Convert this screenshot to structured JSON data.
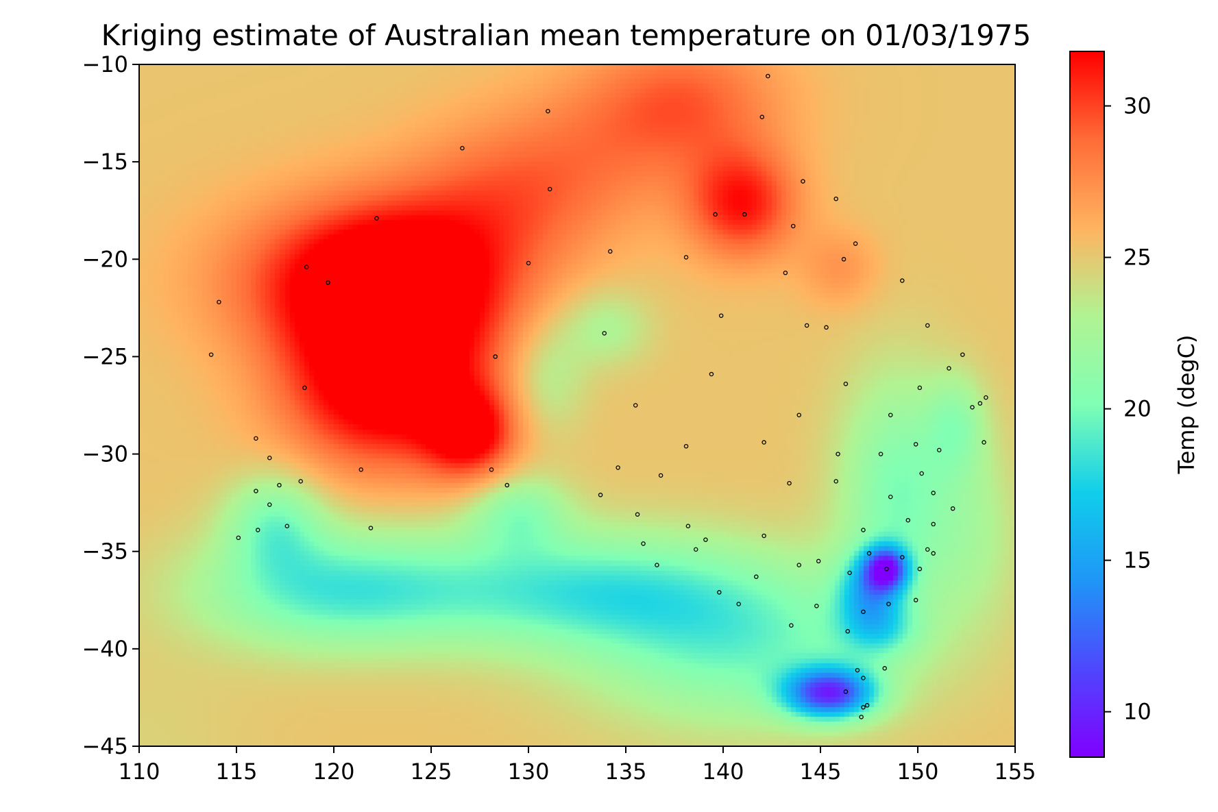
{
  "chart_data": {
    "type": "heatmap",
    "title": "Kriging estimate of Australian mean temperature on 01/03/1975",
    "xlabel": "",
    "ylabel": "",
    "xlim": [
      110,
      155
    ],
    "ylim": [
      -45,
      -10
    ],
    "xticks": [
      "110",
      "115",
      "120",
      "125",
      "130",
      "135",
      "140",
      "145",
      "150",
      "155"
    ],
    "yticks": [
      "−10",
      "−15",
      "−20",
      "−25",
      "−30",
      "−35",
      "−40",
      "−45"
    ],
    "colorbar": {
      "label": "Temp (degC)",
      "range": [
        8.5,
        31.8
      ],
      "ticks": [
        "10",
        "15",
        "20",
        "25",
        "30"
      ],
      "colormap": "rainbow"
    },
    "grid": false,
    "stations": [
      [
        142.3,
        -10.6
      ],
      [
        131.0,
        -12.4
      ],
      [
        142.0,
        -12.7
      ],
      [
        126.6,
        -14.3
      ],
      [
        144.1,
        -16.0
      ],
      [
        131.1,
        -16.4
      ],
      [
        145.8,
        -16.9
      ],
      [
        139.6,
        -17.7
      ],
      [
        141.1,
        -17.7
      ],
      [
        122.2,
        -17.9
      ],
      [
        143.6,
        -18.3
      ],
      [
        146.8,
        -19.2
      ],
      [
        134.2,
        -19.6
      ],
      [
        138.1,
        -19.9
      ],
      [
        146.2,
        -20.0
      ],
      [
        130.0,
        -20.2
      ],
      [
        118.6,
        -20.4
      ],
      [
        143.2,
        -20.7
      ],
      [
        149.2,
        -21.1
      ],
      [
        119.7,
        -21.2
      ],
      [
        114.1,
        -22.2
      ],
      [
        139.9,
        -22.9
      ],
      [
        144.3,
        -23.4
      ],
      [
        150.5,
        -23.4
      ],
      [
        145.3,
        -23.5
      ],
      [
        133.9,
        -23.8
      ],
      [
        113.7,
        -24.9
      ],
      [
        152.3,
        -24.9
      ],
      [
        128.3,
        -25.0
      ],
      [
        151.6,
        -25.6
      ],
      [
        139.4,
        -25.9
      ],
      [
        146.3,
        -26.4
      ],
      [
        118.5,
        -26.6
      ],
      [
        150.1,
        -26.6
      ],
      [
        153.5,
        -27.1
      ],
      [
        153.2,
        -27.4
      ],
      [
        152.8,
        -27.6
      ],
      [
        135.5,
        -27.5
      ],
      [
        143.9,
        -28.0
      ],
      [
        148.6,
        -28.0
      ],
      [
        116.0,
        -29.2
      ],
      [
        142.1,
        -29.4
      ],
      [
        149.9,
        -29.5
      ],
      [
        153.4,
        -29.4
      ],
      [
        138.1,
        -29.6
      ],
      [
        151.1,
        -29.8
      ],
      [
        145.9,
        -30.0
      ],
      [
        148.1,
        -30.0
      ],
      [
        116.7,
        -30.2
      ],
      [
        134.6,
        -30.7
      ],
      [
        121.4,
        -30.8
      ],
      [
        128.1,
        -30.8
      ],
      [
        150.2,
        -31.0
      ],
      [
        136.8,
        -31.1
      ],
      [
        117.2,
        -31.6
      ],
      [
        118.3,
        -31.4
      ],
      [
        143.4,
        -31.5
      ],
      [
        145.8,
        -31.4
      ],
      [
        128.9,
        -31.6
      ],
      [
        116.0,
        -31.9
      ],
      [
        150.8,
        -32.0
      ],
      [
        133.7,
        -32.1
      ],
      [
        148.6,
        -32.2
      ],
      [
        116.7,
        -32.6
      ],
      [
        151.8,
        -32.8
      ],
      [
        135.6,
        -33.1
      ],
      [
        149.5,
        -33.4
      ],
      [
        150.8,
        -33.6
      ],
      [
        117.6,
        -33.7
      ],
      [
        138.2,
        -33.7
      ],
      [
        116.1,
        -33.9
      ],
      [
        121.9,
        -33.8
      ],
      [
        147.2,
        -33.9
      ],
      [
        142.1,
        -34.2
      ],
      [
        115.1,
        -34.3
      ],
      [
        139.1,
        -34.4
      ],
      [
        135.9,
        -34.6
      ],
      [
        138.6,
        -34.9
      ],
      [
        150.5,
        -34.9
      ],
      [
        150.8,
        -35.1
      ],
      [
        147.5,
        -35.1
      ],
      [
        149.2,
        -35.3
      ],
      [
        144.9,
        -35.5
      ],
      [
        143.9,
        -35.7
      ],
      [
        136.6,
        -35.7
      ],
      [
        148.4,
        -35.9
      ],
      [
        150.1,
        -35.9
      ],
      [
        146.5,
        -36.1
      ],
      [
        141.7,
        -36.3
      ],
      [
        139.8,
        -37.1
      ],
      [
        149.9,
        -37.5
      ],
      [
        148.5,
        -37.7
      ],
      [
        140.8,
        -37.7
      ],
      [
        144.8,
        -37.8
      ],
      [
        147.2,
        -38.1
      ],
      [
        143.5,
        -38.8
      ],
      [
        146.4,
        -39.1
      ],
      [
        148.3,
        -41.0
      ],
      [
        146.9,
        -41.1
      ],
      [
        147.2,
        -41.5
      ],
      [
        146.3,
        -42.2
      ],
      [
        147.4,
        -42.9
      ],
      [
        147.2,
        -43.0
      ],
      [
        147.1,
        -43.5
      ]
    ]
  }
}
